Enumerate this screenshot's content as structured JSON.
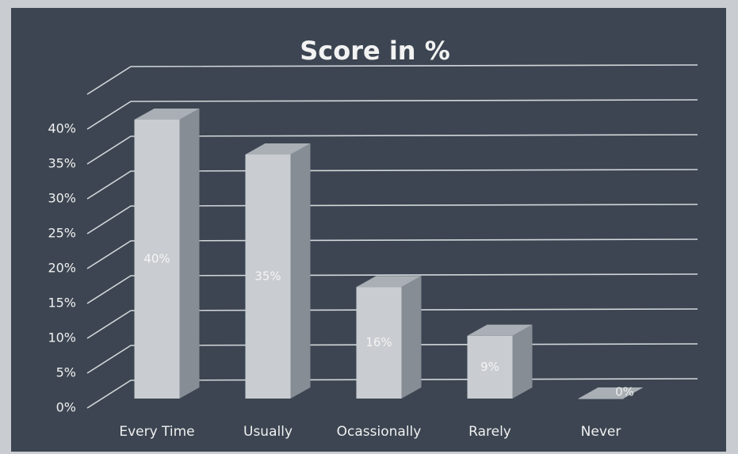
{
  "chart_data": {
    "type": "bar3d",
    "title": "Score in %",
    "categories": [
      "Every Time",
      "Usually",
      "Ocassionally",
      "Rarely",
      "Never"
    ],
    "values": [
      40,
      35,
      16,
      9,
      0
    ],
    "value_labels": [
      "40%",
      "35%",
      "16%",
      "9%",
      "0%"
    ],
    "color": "#c9cdd1",
    "ylim": [
      0,
      45
    ],
    "yticks": [
      {
        "value": 0,
        "label": "0%"
      },
      {
        "value": 5,
        "label": "5%"
      },
      {
        "value": 10,
        "label": "10%"
      },
      {
        "value": 15,
        "label": "15%"
      },
      {
        "value": 20,
        "label": "20%"
      },
      {
        "value": 25,
        "label": "25%"
      },
      {
        "value": 30,
        "label": "30%"
      },
      {
        "value": 35,
        "label": "35%"
      },
      {
        "value": 40,
        "label": "40%"
      }
    ],
    "grid": true
  }
}
